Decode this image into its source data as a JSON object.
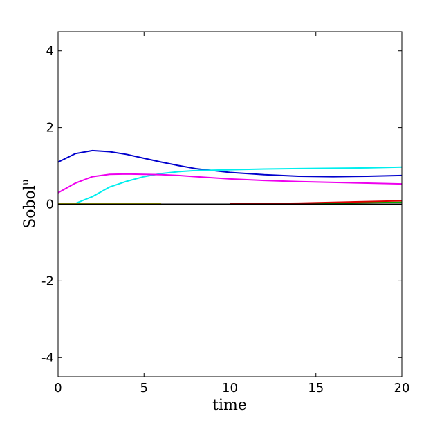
{
  "chart_data": {
    "type": "line",
    "xlabel": "time",
    "ylabel": "Sobol",
    "ylabel_superscript": "u",
    "x": [
      0,
      1,
      2,
      3,
      4,
      5,
      6,
      7,
      8,
      10,
      12,
      14,
      16,
      18,
      20
    ],
    "series": [
      {
        "color": "#0000cc",
        "values": [
          1.1,
          1.32,
          1.4,
          1.37,
          1.3,
          1.2,
          1.1,
          1.01,
          0.93,
          0.83,
          0.77,
          0.73,
          0.72,
          0.73,
          0.75
        ]
      },
      {
        "color": "#00eeee",
        "values": [
          0,
          0.02,
          0.2,
          0.45,
          0.6,
          0.72,
          0.8,
          0.85,
          0.88,
          0.9,
          0.92,
          0.93,
          0.94,
          0.95,
          0.97
        ]
      },
      {
        "color": "#ee00ee",
        "values": [
          0.3,
          0.55,
          0.72,
          0.78,
          0.79,
          0.78,
          0.77,
          0.75,
          0.72,
          0.66,
          0.62,
          0.59,
          0.57,
          0.55,
          0.53
        ]
      },
      {
        "color": "#dddd00",
        "values": [
          0.01,
          0.01,
          0.01,
          0.01,
          0.01,
          0.01,
          0.01,
          null,
          null,
          null,
          null,
          null,
          null,
          null,
          null
        ]
      },
      {
        "color": "#00aa00",
        "values": [
          0,
          0,
          0,
          0,
          0,
          0,
          0,
          0,
          0,
          0,
          0.01,
          0.02,
          0.03,
          0.04,
          0.05
        ]
      },
      {
        "color": "#dd0000",
        "values": [
          null,
          null,
          null,
          null,
          null,
          null,
          null,
          null,
          null,
          0.01,
          0.02,
          0.03,
          0.05,
          0.07,
          0.09
        ]
      },
      {
        "color": "#000000",
        "values": [
          0,
          0,
          0,
          0,
          0,
          0,
          0,
          0,
          0,
          0,
          0,
          0,
          0,
          0,
          0
        ]
      }
    ],
    "xlim": [
      0,
      20
    ],
    "xticks": [
      0,
      5,
      10,
      15,
      20
    ],
    "ylim": [
      -4.5,
      4.5
    ],
    "yticks": [
      -4,
      -2,
      0,
      2,
      4
    ]
  }
}
